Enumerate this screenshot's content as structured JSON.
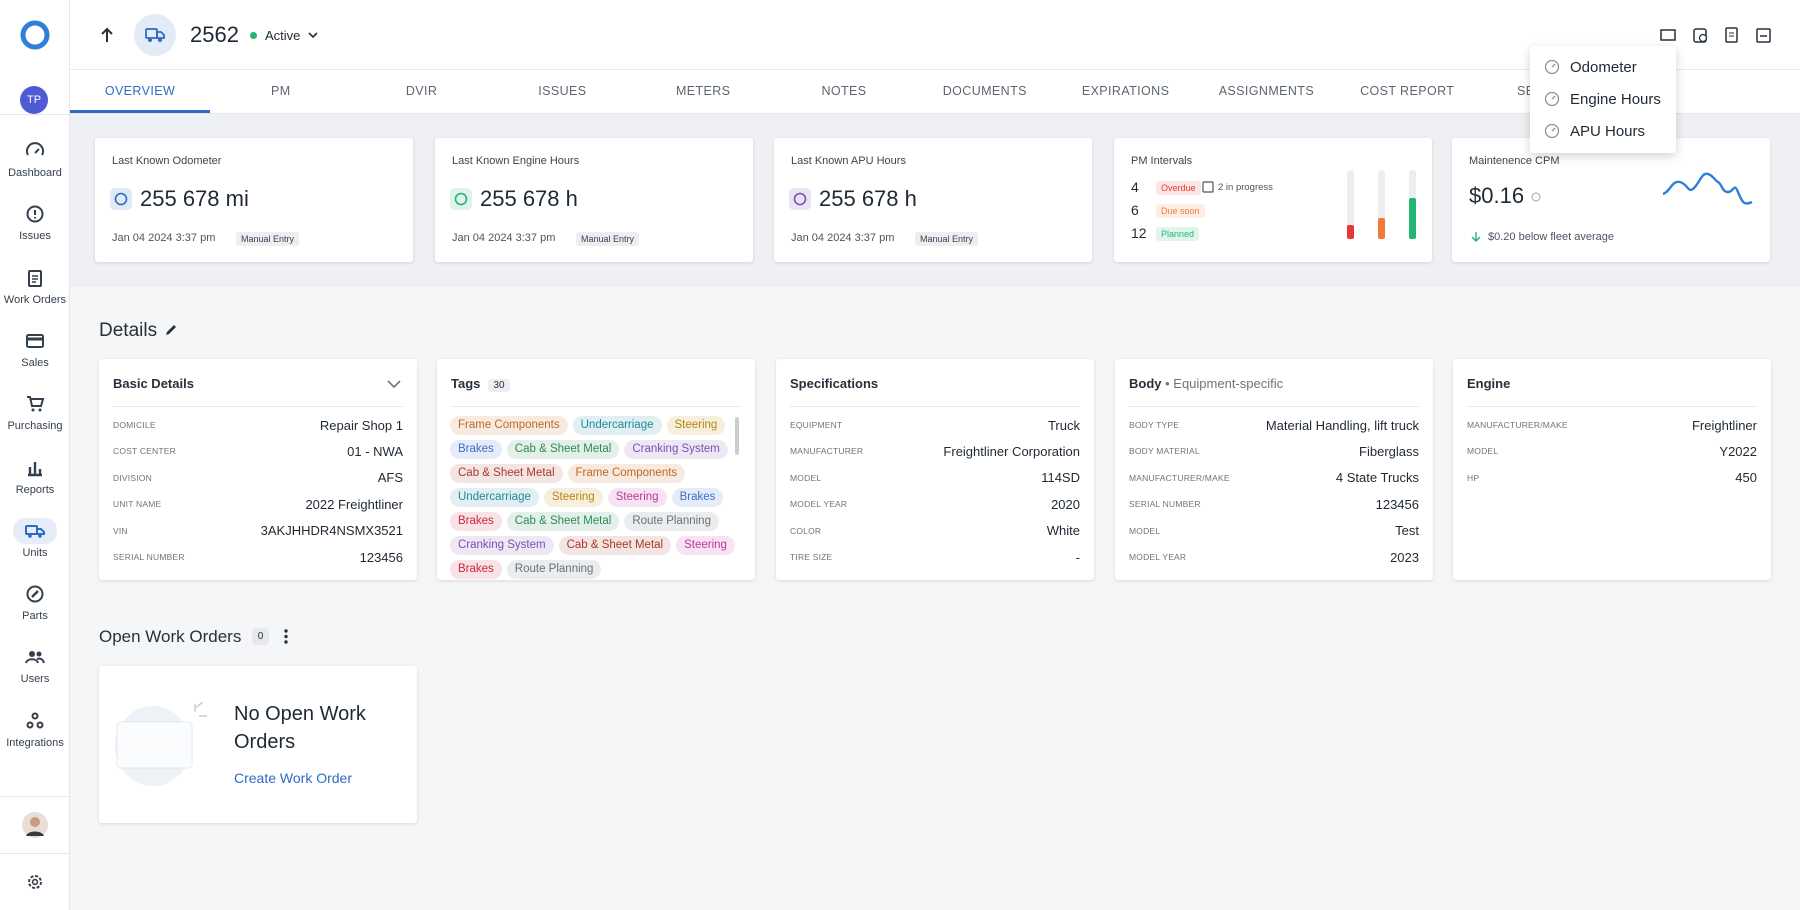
{
  "sidebar": {
    "avatar": "TP",
    "nav": [
      "Dashboard",
      "Issues",
      "Work Orders",
      "Sales",
      "Purchasing",
      "Reports",
      "Units",
      "Parts",
      "Users",
      "Integrations"
    ]
  },
  "header": {
    "unit": "2562",
    "status": "Active"
  },
  "tabs": [
    "OVERVIEW",
    "PM",
    "DVIR",
    "ISSUES",
    "METERS",
    "NOTES",
    "DOCUMENTS",
    "EXPIRATIONS",
    "ASSIGNMENTS",
    "COST REPORT",
    "SE"
  ],
  "meter_menu": [
    "Odometer",
    "Engine Hours",
    "APU Hours"
  ],
  "meters": [
    {
      "label": "Last Known Odometer",
      "value": "255 678 mi",
      "date": "Jan 04 2024 3:37 pm",
      "source": "Manual Entry"
    },
    {
      "label": "Last Known Engine Hours",
      "value": "255 678 h",
      "date": "Jan 04 2024 3:37 pm",
      "source": "Manual Entry"
    },
    {
      "label": "Last Known APU Hours",
      "value": "255 678 h",
      "date": "Jan 04 2024 3:37 pm",
      "source": "Manual Entry"
    }
  ],
  "pm_intervals": {
    "label": "PM Intervals",
    "rows": [
      {
        "count": 4,
        "status": "Overdue",
        "note": "2 in progress",
        "color": "#e53935"
      },
      {
        "count": 6,
        "status": "Due soon",
        "color": "#f07a3c"
      },
      {
        "count": 12,
        "status": "Planned",
        "color": "#22b573"
      }
    ]
  },
  "cpm": {
    "label": "Maintenence CPM",
    "value": "$0.16",
    "comparison": "$0.20 below fleet average"
  },
  "details": {
    "title": "Details",
    "basic_details": {
      "title": "Basic Details",
      "rows": [
        {
          "label": "DOMICILE",
          "value": "Repair Shop 1"
        },
        {
          "label": "COST CENTER",
          "value": "01 - NWA"
        },
        {
          "label": "DIVISION",
          "value": "AFS"
        },
        {
          "label": "UNIT NAME",
          "value": "2022 Freightliner"
        },
        {
          "label": "VIN",
          "value": "3AKJHHDR4NSMX3521"
        },
        {
          "label": "SERIAL NUMBER",
          "value": "123456"
        }
      ]
    },
    "tags": {
      "title": "Tags",
      "count": "30",
      "tags": [
        {
          "text": "Frame Components",
          "color": "#c2671f"
        },
        {
          "text": "Undercarriage",
          "color": "#1f8a9a"
        },
        {
          "text": "Steering",
          "color": "#b8860b"
        },
        {
          "text": "Brakes",
          "color": "#3a6fc9"
        },
        {
          "text": "Cab & Sheet Metal",
          "color": "#2e8b57"
        },
        {
          "text": "Cranking System",
          "color": "#7b4fb0"
        },
        {
          "text": "Cab & Sheet Metal",
          "color": "#a83a2a"
        },
        {
          "text": "Frame Components",
          "color": "#c2671f"
        },
        {
          "text": "Undercarriage",
          "color": "#1f8a9a"
        },
        {
          "text": "Steering",
          "color": "#b8860b"
        },
        {
          "text": "Steering",
          "color": "#c0359b"
        },
        {
          "text": "Brakes",
          "color": "#3a6fc9"
        },
        {
          "text": "Brakes",
          "color": "#c8283a"
        },
        {
          "text": "Cab & Sheet Metal",
          "color": "#2e8b57"
        },
        {
          "text": "Route Planning",
          "color": "#6b6f76"
        },
        {
          "text": "Cranking System",
          "color": "#7b4fb0"
        },
        {
          "text": "Cab & Sheet Metal",
          "color": "#a83a2a"
        },
        {
          "text": "Steering",
          "color": "#c0359b"
        },
        {
          "text": "Brakes",
          "color": "#c8283a"
        },
        {
          "text": "Route Planning",
          "color": "#6b6f76"
        }
      ]
    },
    "specifications": {
      "title": "Specifications",
      "rows": [
        {
          "label": "EQUIPMENT",
          "value": "Truck"
        },
        {
          "label": "MANUFACTURER",
          "value": "Freightliner Corporation"
        },
        {
          "label": "MODEL",
          "value": "114SD"
        },
        {
          "label": "MODEL YEAR",
          "value": "2020"
        },
        {
          "label": "COLOR",
          "value": "White"
        },
        {
          "label": "TIRE SIZE",
          "value": "-"
        }
      ]
    },
    "body": {
      "title": "Body",
      "subtitle": "Equipment-specific",
      "rows": [
        {
          "label": "BODY TYPE",
          "value": "Material Handling, lift truck"
        },
        {
          "label": "BODY MATERIAL",
          "value": "Fiberglass"
        },
        {
          "label": "MANUFACTURER/MAKE",
          "value": "4 State Trucks"
        },
        {
          "label": "SERIAL NUMBER",
          "value": "123456"
        },
        {
          "label": "MODEL",
          "value": "Test"
        },
        {
          "label": "MODEL YEAR",
          "value": "2023"
        }
      ]
    },
    "engine": {
      "title": "Engine",
      "rows": [
        {
          "label": "MANUFACTURER/MAKE",
          "value": "Freightliner"
        },
        {
          "label": "MODEL",
          "value": "Y2022"
        },
        {
          "label": "HP",
          "value": "450"
        }
      ]
    }
  },
  "open_work_orders": {
    "title": "Open Work Orders",
    "count": "0",
    "empty_title": "No Open Work Orders",
    "action": "Create Work Order"
  }
}
